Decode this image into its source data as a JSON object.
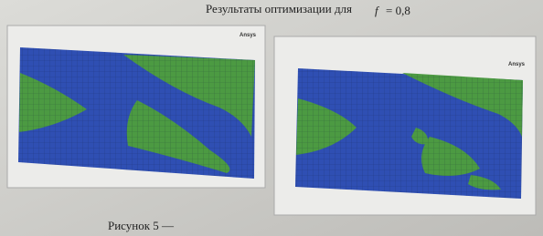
{
  "caption_top": {
    "text": "Результаты оптимизации для",
    "variable": "f",
    "value": "= 0,8"
  },
  "figures": [
    {
      "logo": "Ansys"
    },
    {
      "logo": "Ansys"
    }
  ],
  "caption_bottom": "Рисунок 5 —"
}
